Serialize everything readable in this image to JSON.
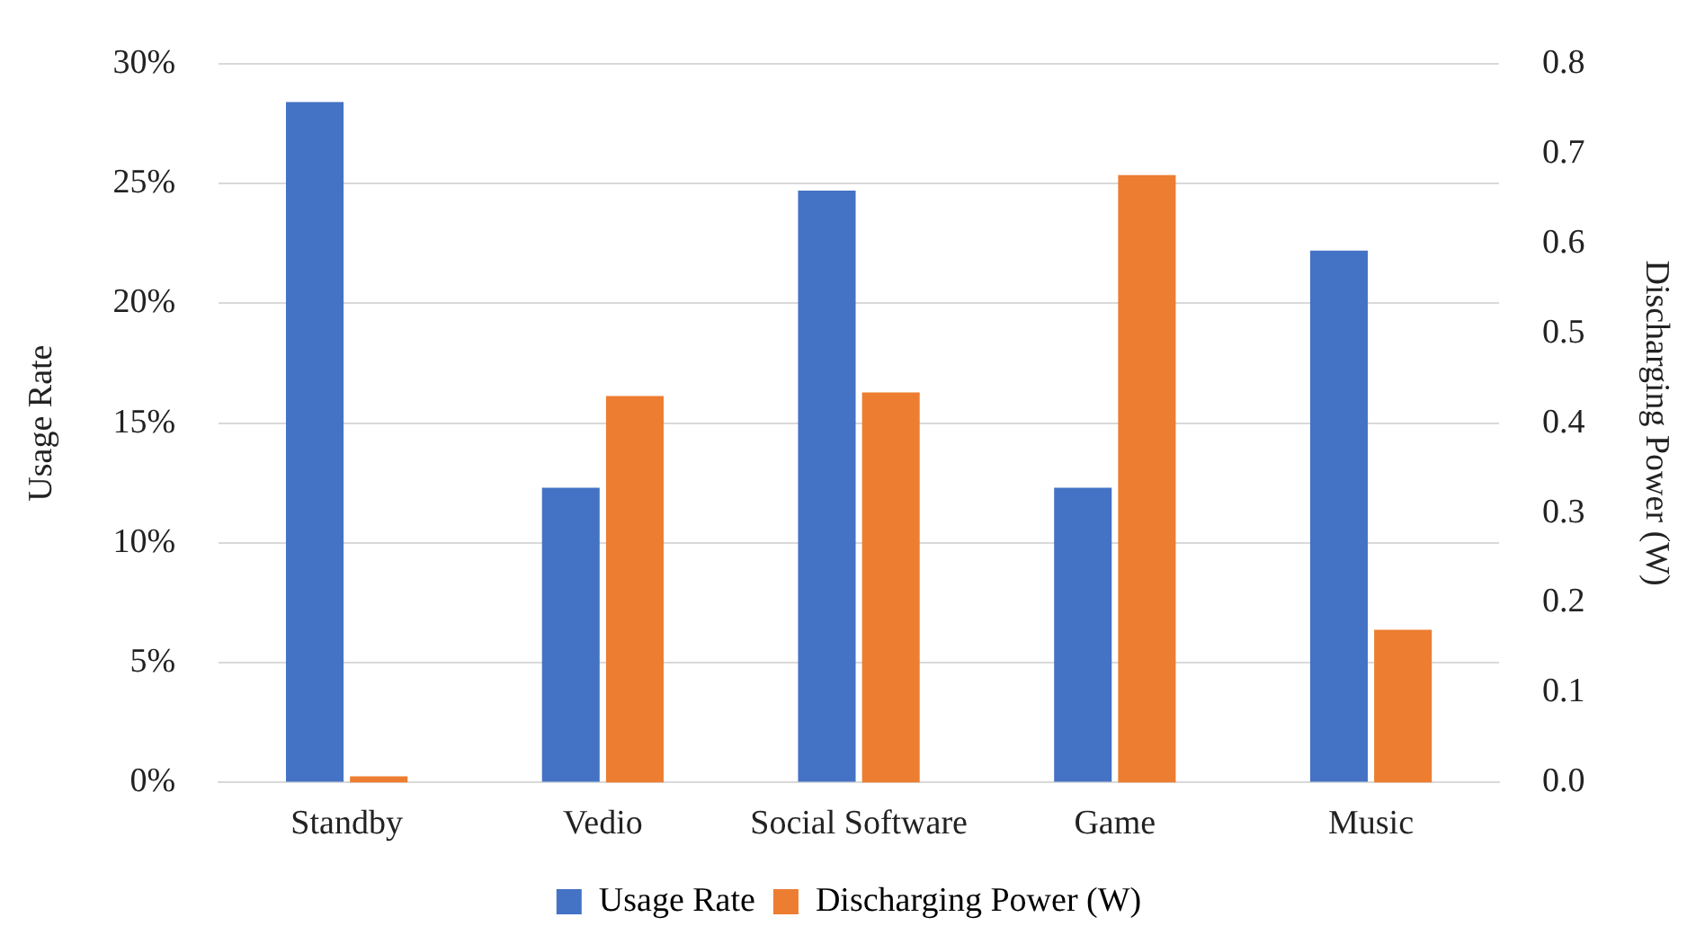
{
  "chart_data": {
    "type": "bar",
    "categories": [
      "Standby",
      "Vedio",
      "Social Software",
      "Game",
      "Music"
    ],
    "ylabel": "Usage Rate",
    "y2label": "Discharging Power (W)",
    "series": [
      {
        "name": "Usage Rate",
        "color": "#4472c4",
        "values": [
          28.4,
          12.3,
          24.7,
          12.3,
          22.2
        ]
      },
      {
        "name": "Discharging Power (W)",
        "color": "#ed7d31",
        "axis": "y2",
        "values": [
          0.007,
          0.43,
          0.434,
          0.676,
          0.17
        ]
      }
    ],
    "ylim": [
      0,
      30
    ],
    "yticks": [
      {
        "value": 0,
        "label": "0%"
      },
      {
        "value": 5,
        "label": "5%"
      },
      {
        "value": 10,
        "label": "10%"
      },
      {
        "value": 15,
        "label": "15%"
      },
      {
        "value": 20,
        "label": "20%"
      },
      {
        "value": 25,
        "label": "25%"
      },
      {
        "value": 30,
        "label": "30%"
      }
    ],
    "y2lim": [
      0,
      0.8
    ],
    "y2ticks": [
      {
        "value": 0,
        "label": "0.0"
      },
      {
        "value": 0.1,
        "label": "0.1"
      },
      {
        "value": 0.2,
        "label": "0.2"
      },
      {
        "value": 0.3,
        "label": "0.3"
      },
      {
        "value": 0.4,
        "label": "0.4"
      },
      {
        "value": 0.5,
        "label": "0.5"
      },
      {
        "value": 0.6,
        "label": "0.6"
      },
      {
        "value": 0.7,
        "label": "0.7"
      },
      {
        "value": 0.8,
        "label": "0.8"
      }
    ],
    "grid": "y",
    "legend": "bottom"
  }
}
